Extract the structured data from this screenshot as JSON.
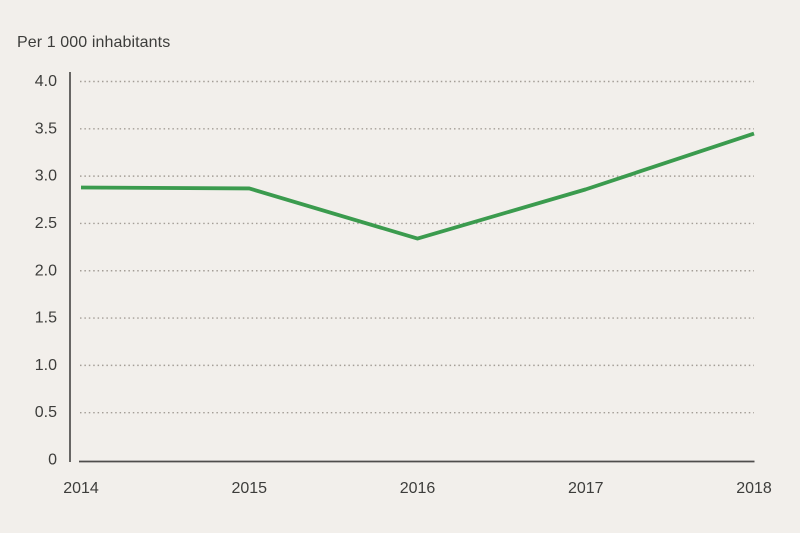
{
  "page": {
    "background_color": "#f2efeb"
  },
  "chart_data": {
    "type": "line",
    "title": "Per 1 000 inhabitants",
    "x": [
      "2014",
      "2015",
      "2016",
      "2017",
      "2018"
    ],
    "series": [
      {
        "name": "Per 1 000 inhabitants",
        "color": "#3b9b4e",
        "values": [
          2.88,
          2.87,
          2.34,
          2.86,
          3.45
        ]
      }
    ],
    "xlabel": "",
    "ylabel": "",
    "ylim": [
      0,
      4
    ],
    "yticks": [
      0,
      0.5,
      1,
      1.5,
      2,
      2.5,
      3,
      3.5,
      4
    ],
    "ytick_labels": [
      "0",
      "0.5",
      "1.0",
      "1.5",
      "2.0",
      "2.5",
      "3.0",
      "3.5",
      "4.0"
    ],
    "grid": "horizontal-dotted",
    "legend_position": "none",
    "axis_color": "#4f4e4c",
    "grid_color": "#a49e97",
    "text_color": "#3d3d3b"
  }
}
